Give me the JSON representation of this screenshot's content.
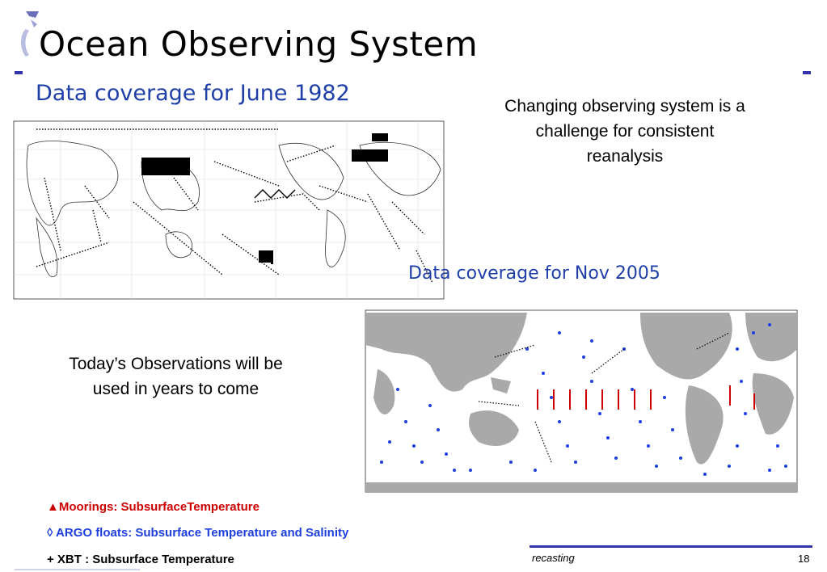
{
  "slide": {
    "title": "Ocean Observing System",
    "subtitle_1982": "Data coverage for June 1982",
    "subtitle_2005": "Data coverage for Nov 2005",
    "note_top": "Changing observing system is a challenge for consistent reanalysis",
    "note_bottom": "Today’s Observations will be used in years to come"
  },
  "legend": {
    "moorings": "▲Moorings: SubsurfaceTemperature",
    "argo": "◊ ARGO floats: Subsurface Temperature and  Salinity",
    "xbt": "+ XBT : Subsurface Temperature"
  },
  "footer": {
    "label": "recasting",
    "page": "18"
  },
  "colors": {
    "accent": "#3333aa",
    "subtitle": "#1f3fa8",
    "mooring": "#cc0000",
    "argo": "#1f3fdd",
    "land": "#a9a9a9"
  },
  "icons": [
    "logo-icon"
  ]
}
